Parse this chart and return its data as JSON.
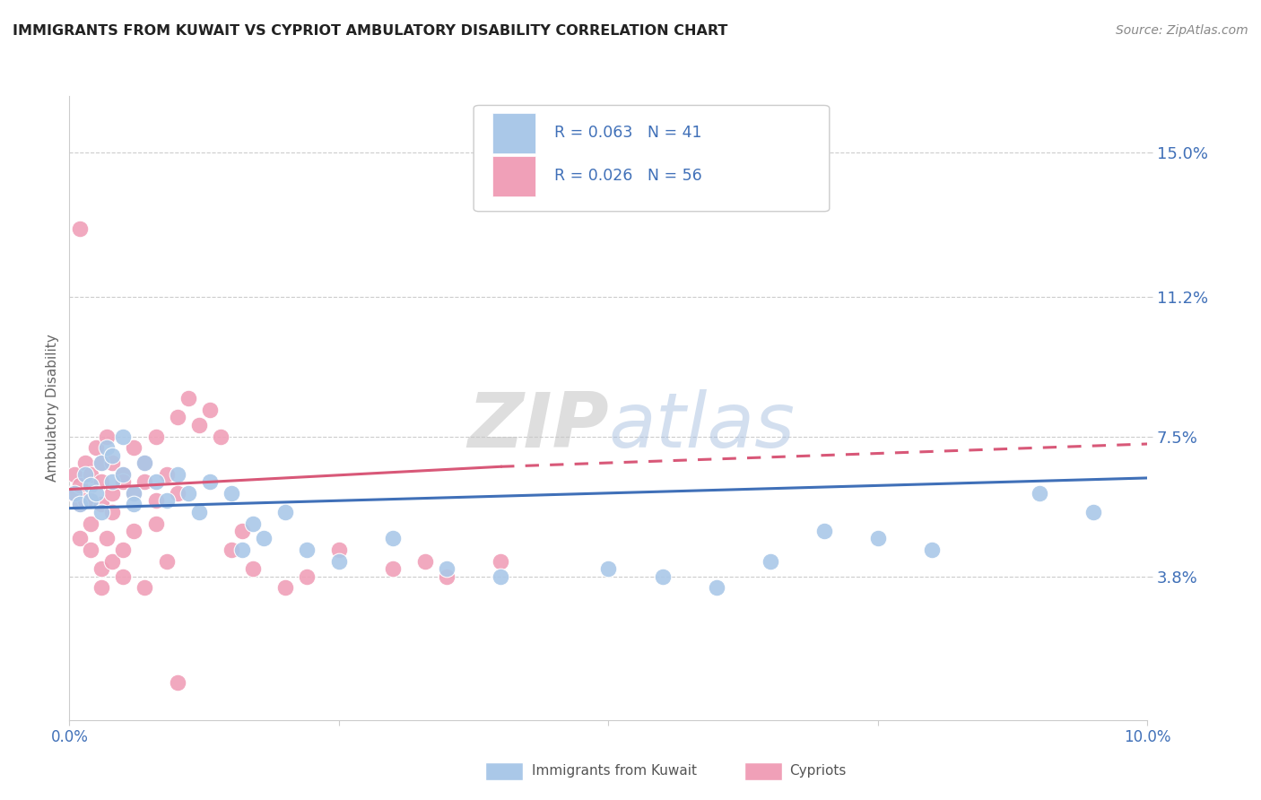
{
  "title": "IMMIGRANTS FROM KUWAIT VS CYPRIOT AMBULATORY DISABILITY CORRELATION CHART",
  "source": "Source: ZipAtlas.com",
  "ylabel": "Ambulatory Disability",
  "xlim": [
    0.0,
    0.1
  ],
  "ylim": [
    0.0,
    0.165
  ],
  "ytick_labels_right": [
    "15.0%",
    "11.2%",
    "7.5%",
    "3.8%"
  ],
  "ytick_vals_right": [
    0.15,
    0.112,
    0.075,
    0.038
  ],
  "legend_r1": "R = 0.063",
  "legend_n1": "N = 41",
  "legend_r2": "R = 0.026",
  "legend_n2": "N = 56",
  "kuwait_color": "#aac8e8",
  "cypriot_color": "#f0a0b8",
  "kuwait_line_color": "#4070b8",
  "cypriot_line_color": "#d85878",
  "background_color": "#ffffff",
  "watermark_zip": "ZIP",
  "watermark_atlas": "atlas",
  "kuwait_x": [
    0.0005,
    0.001,
    0.0015,
    0.002,
    0.002,
    0.0025,
    0.003,
    0.003,
    0.0035,
    0.004,
    0.004,
    0.005,
    0.005,
    0.006,
    0.006,
    0.007,
    0.008,
    0.009,
    0.01,
    0.011,
    0.012,
    0.013,
    0.015,
    0.016,
    0.017,
    0.018,
    0.02,
    0.022,
    0.025,
    0.03,
    0.035,
    0.04,
    0.05,
    0.055,
    0.06,
    0.065,
    0.07,
    0.075,
    0.08,
    0.09,
    0.095
  ],
  "kuwait_y": [
    0.06,
    0.057,
    0.065,
    0.062,
    0.058,
    0.06,
    0.068,
    0.055,
    0.072,
    0.063,
    0.07,
    0.065,
    0.075,
    0.06,
    0.057,
    0.068,
    0.063,
    0.058,
    0.065,
    0.06,
    0.055,
    0.063,
    0.06,
    0.045,
    0.052,
    0.048,
    0.055,
    0.045,
    0.042,
    0.048,
    0.04,
    0.038,
    0.04,
    0.038,
    0.035,
    0.042,
    0.05,
    0.048,
    0.045,
    0.06,
    0.055
  ],
  "cypriot_x": [
    0.0003,
    0.0005,
    0.001,
    0.001,
    0.0015,
    0.002,
    0.002,
    0.0025,
    0.003,
    0.003,
    0.003,
    0.0035,
    0.004,
    0.004,
    0.004,
    0.005,
    0.005,
    0.006,
    0.006,
    0.007,
    0.007,
    0.008,
    0.008,
    0.009,
    0.01,
    0.01,
    0.011,
    0.012,
    0.013,
    0.014,
    0.015,
    0.016,
    0.017,
    0.02,
    0.022,
    0.025,
    0.03,
    0.033,
    0.035,
    0.04,
    0.001,
    0.001,
    0.0015,
    0.002,
    0.002,
    0.003,
    0.003,
    0.0035,
    0.004,
    0.005,
    0.005,
    0.006,
    0.007,
    0.008,
    0.009,
    0.01
  ],
  "cypriot_y": [
    0.06,
    0.065,
    0.062,
    0.057,
    0.068,
    0.065,
    0.058,
    0.072,
    0.068,
    0.063,
    0.057,
    0.075,
    0.06,
    0.055,
    0.068,
    0.065,
    0.063,
    0.072,
    0.06,
    0.068,
    0.063,
    0.075,
    0.058,
    0.065,
    0.08,
    0.06,
    0.085,
    0.078,
    0.082,
    0.075,
    0.045,
    0.05,
    0.04,
    0.035,
    0.038,
    0.045,
    0.04,
    0.042,
    0.038,
    0.042,
    0.13,
    0.048,
    0.058,
    0.045,
    0.052,
    0.04,
    0.035,
    0.048,
    0.042,
    0.038,
    0.045,
    0.05,
    0.035,
    0.052,
    0.042,
    0.01
  ],
  "kw_trend_x0": 0.0,
  "kw_trend_y0": 0.056,
  "kw_trend_x1": 0.1,
  "kw_trend_y1": 0.064,
  "cy_trend_x0": 0.0,
  "cy_trend_y0": 0.061,
  "cy_trend_solid_x1": 0.04,
  "cy_trend_solid_y1": 0.067,
  "cy_trend_dash_x1": 0.1,
  "cy_trend_dash_y1": 0.073
}
